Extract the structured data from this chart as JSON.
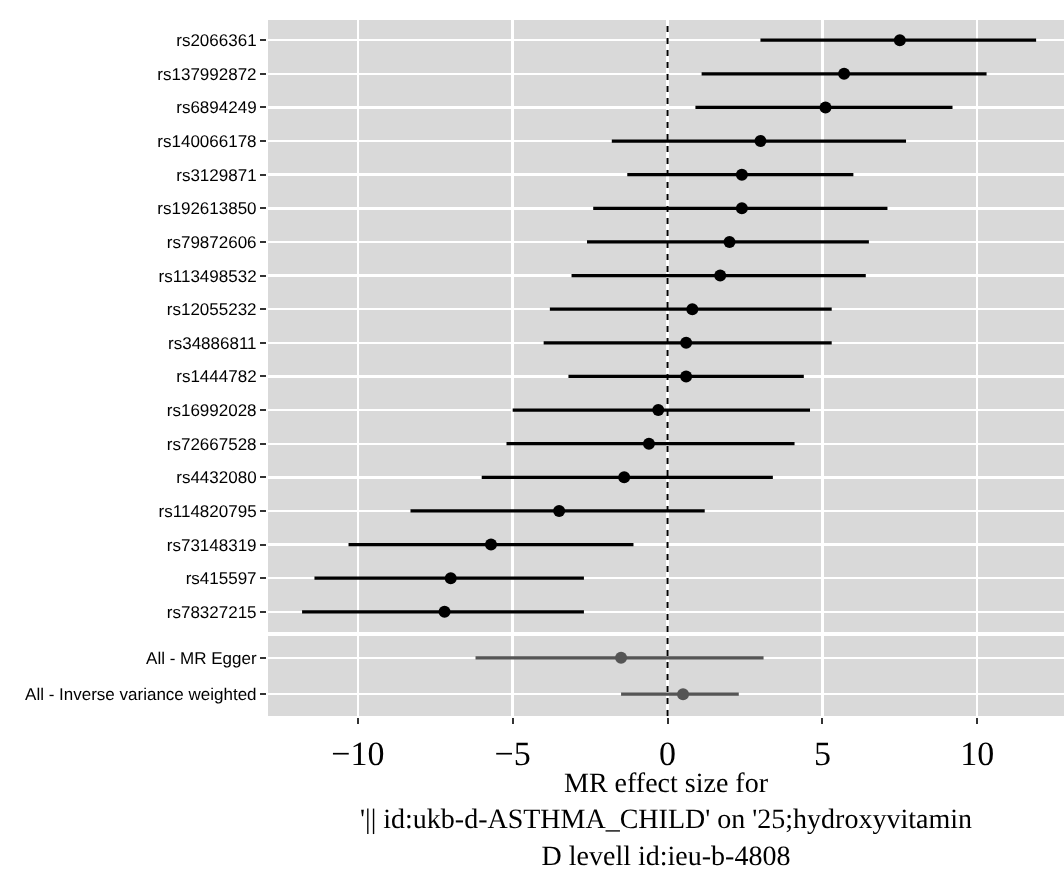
{
  "chart_data": [
    {
      "type": "scatter",
      "orientation": "horizontal",
      "categories": [
        "rs2066361",
        "rs137992872",
        "rs6894249",
        "rs140066178",
        "rs3129871",
        "rs192613850",
        "rs79872606",
        "rs113498532",
        "rs12055232",
        "rs34886811",
        "rs1444782",
        "rs16992028",
        "rs72667528",
        "rs4432080",
        "rs114820795",
        "rs73148319",
        "rs415597",
        "rs78327215"
      ],
      "values": [
        7.5,
        5.7,
        5.1,
        3.0,
        2.4,
        2.4,
        2.0,
        1.7,
        0.8,
        0.6,
        0.6,
        -0.3,
        -0.6,
        -1.4,
        -3.5,
        -5.7,
        -7.0,
        -7.2
      ],
      "errors": [
        [
          3.0,
          11.9
        ],
        [
          1.1,
          10.3
        ],
        [
          0.9,
          9.2
        ],
        [
          -1.8,
          7.7
        ],
        [
          -1.3,
          6.0
        ],
        [
          -2.4,
          7.1
        ],
        [
          -2.6,
          6.5
        ],
        [
          -3.1,
          6.4
        ],
        [
          -3.8,
          5.3
        ],
        [
          -4.0,
          5.3
        ],
        [
          -3.2,
          4.4
        ],
        [
          -5.0,
          4.6
        ],
        [
          -5.2,
          4.1
        ],
        [
          -6.0,
          3.4
        ],
        [
          -8.3,
          1.2
        ],
        [
          -10.3,
          -1.1
        ],
        [
          -11.4,
          -2.7
        ],
        [
          -11.8,
          -2.7
        ]
      ],
      "color": "#000000",
      "marker": "circle",
      "grid": true,
      "tick_labels": "y",
      "xlim": [
        -12.9,
        12.8
      ],
      "ref_lines": [
        {
          "axis": "x",
          "value": 0,
          "line_style": "dotted",
          "color": "#000000"
        }
      ]
    },
    {
      "type": "scatter",
      "orientation": "horizontal",
      "categories": [
        "All - MR Egger",
        "All - Inverse variance weighted"
      ],
      "values": [
        -1.5,
        0.5
      ],
      "errors": [
        [
          -6.2,
          3.1
        ],
        [
          -1.5,
          2.3
        ]
      ],
      "color": "#555555",
      "marker": "circle",
      "grid": true,
      "xlim": [
        -12.9,
        12.8
      ],
      "xticks": [
        {
          "value": -10,
          "label": "−10"
        },
        {
          "value": -5,
          "label": "−5"
        },
        0,
        5,
        10
      ],
      "xlabel": "MR effect size for\n'|| id:ukb-d-ASTHMA_CHILD' on '25;hydroxyvitamin\nD levell id:ieu-b-4808",
      "ref_lines": [
        {
          "axis": "x",
          "value": 0,
          "line_style": "dotted",
          "color": "#000000"
        }
      ]
    }
  ]
}
